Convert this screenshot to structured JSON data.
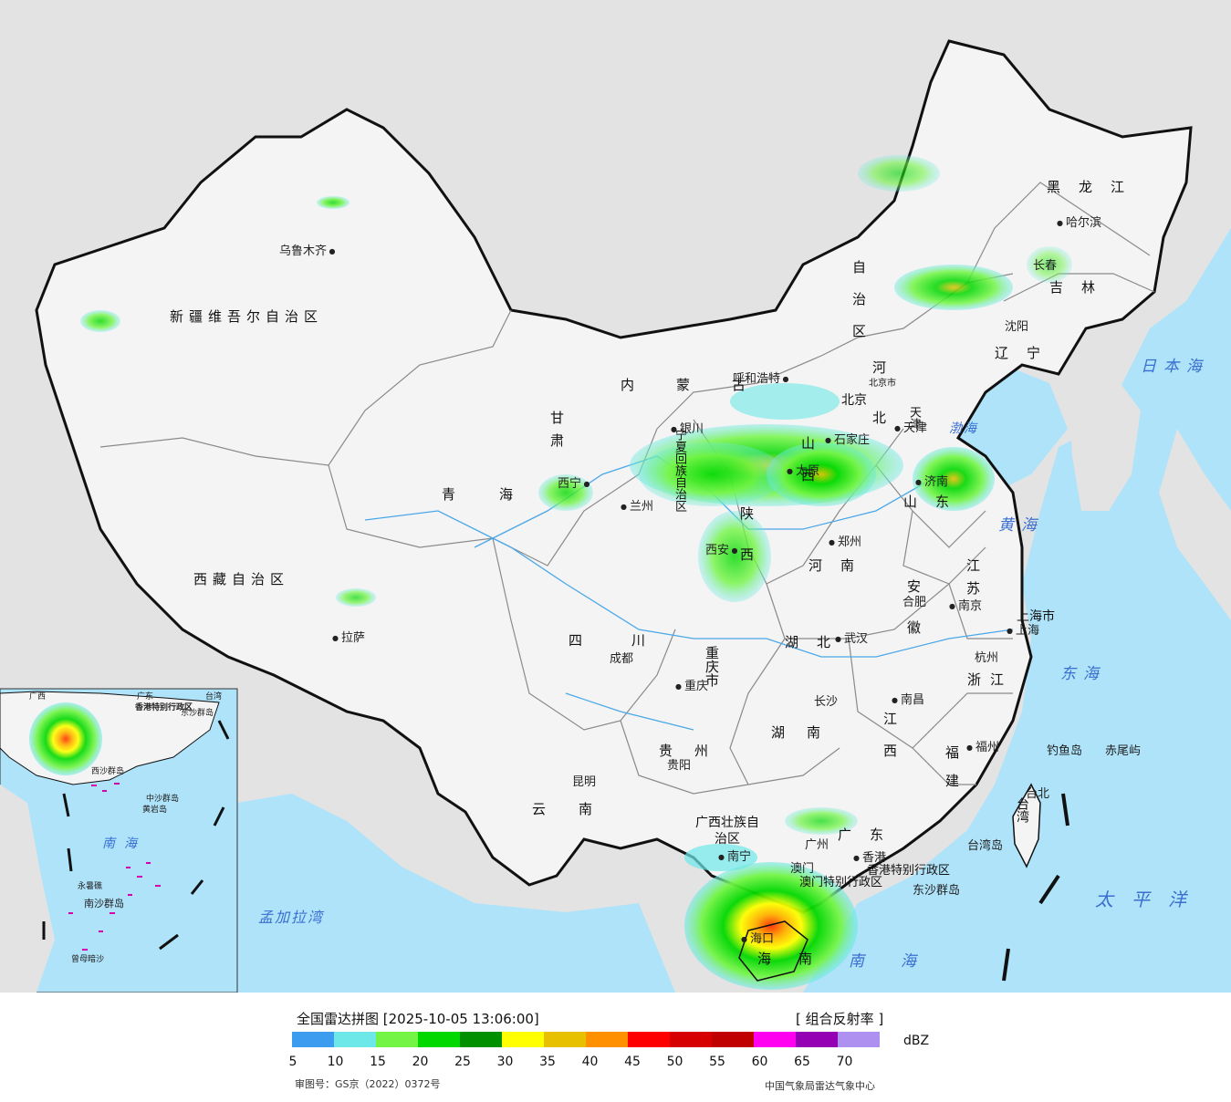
{
  "title": "全国雷达拼图 [2025-10-05 13:06:00]",
  "product": "[ 组合反射率 ]",
  "legend": {
    "unit": "dBZ",
    "ticks": [
      "5",
      "10",
      "15",
      "20",
      "25",
      "30",
      "35",
      "40",
      "45",
      "50",
      "55",
      "60",
      "65",
      "70"
    ],
    "colors": [
      "#3c9cf0",
      "#6de8e8",
      "#74f545",
      "#00d800",
      "#009000",
      "#ffff00",
      "#e7c000",
      "#ff9000",
      "#ff0000",
      "#d60000",
      "#c00000",
      "#ff00f0",
      "#9600b4",
      "#ad90f0"
    ]
  },
  "approval_number": "审图号：GS京（2022）0372号",
  "organization": "中国气象局雷达气象中心",
  "colors": {
    "sea": "#aee3fa",
    "land_outside": "#e3e3e3",
    "china_land": "#f4f4f4",
    "border": "#111111",
    "province_border": "#777777"
  },
  "provinces": [
    "新疆维吾尔自治区",
    "西藏自治区",
    "青海",
    "甘肃",
    "内蒙古",
    "黑龙江",
    "吉林",
    "辽宁",
    "河北",
    "山西",
    "陕西",
    "宁夏回族自治区",
    "四川",
    "重庆市",
    "湖北",
    "河南",
    "山东",
    "江苏",
    "安徽",
    "浙江",
    "江西",
    "湖南",
    "贵州",
    "云南",
    "广西壮族自治区",
    "广东",
    "福建",
    "台湾",
    "海南",
    "上海市",
    "天津",
    "北京市",
    "香港特别行政区",
    "澳门特别行政区",
    "自治区"
  ],
  "cities": [
    "乌鲁木齐",
    "拉萨",
    "西宁",
    "兰州",
    "银川",
    "呼和浩特",
    "北京",
    "天津",
    "石家庄",
    "太原",
    "济南",
    "郑州",
    "西安",
    "合肥",
    "南京",
    "上海",
    "杭州",
    "武汉",
    "成都",
    "重庆",
    "长沙",
    "南昌",
    "福州",
    "贵阳",
    "昆明",
    "南宁",
    "广州",
    "香港",
    "澳门",
    "海口",
    "台北",
    "沈阳",
    "长春",
    "哈尔滨"
  ],
  "seas": [
    "日本海",
    "黄海",
    "东海",
    "太平洋",
    "南海",
    "渤海",
    "孟加拉湾"
  ],
  "islands": [
    "钓鱼岛",
    "赤尾屿",
    "台湾岛",
    "东沙群岛",
    "中沙群岛",
    "南沙群岛",
    "西沙群岛",
    "黄岩岛",
    "永暑礁",
    "曾母暗沙"
  ],
  "inset": {
    "labels": [
      "广西",
      "广东",
      "台湾",
      "香港特别行政区",
      "东沙群岛",
      "中沙群岛",
      "南海",
      "西沙群岛",
      "黄岩岛",
      "永暑礁",
      "南沙群岛",
      "曾母暗沙"
    ]
  }
}
